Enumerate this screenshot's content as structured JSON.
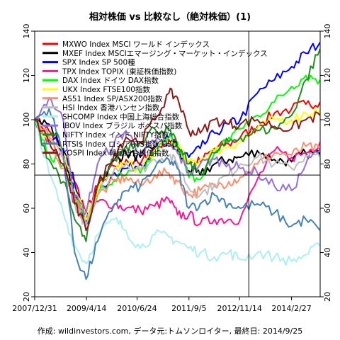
{
  "footer": "作成: wildinvestors.com, データ元:トムソンロイター, 最終日: 2014/9/25",
  "chart_data": {
    "type": "line",
    "title": "相対株価 vs 比較なし（絶対株価）(1)",
    "xlabel": "",
    "ylabel": "",
    "ylim": [
      20,
      140
    ],
    "yticks": [
      20,
      40,
      60,
      80,
      100,
      120,
      140
    ],
    "x_tick_labels": [
      "2007/12/31",
      "2009/4/14",
      "2010/6/24",
      "2011/9/5",
      "2012/11/14",
      "2014/2/27"
    ],
    "x_tick_positions": [
      0,
      0.1815,
      0.3585,
      0.5404,
      0.7176,
      0.8997
    ],
    "crosshair": {
      "x": 0.75,
      "y": 75
    },
    "grid": false,
    "legend_position": "top-left",
    "series": [
      {
        "name": "MXWO Index MSCI ワールド インデックス",
        "color": "#ff0000",
        "points": [
          [
            0,
            100
          ],
          [
            0.05,
            95
          ],
          [
            0.1,
            86
          ],
          [
            0.14,
            72
          ],
          [
            0.18,
            58
          ],
          [
            0.22,
            70
          ],
          [
            0.28,
            79
          ],
          [
            0.32,
            82
          ],
          [
            0.37,
            80
          ],
          [
            0.42,
            87
          ],
          [
            0.47,
            91
          ],
          [
            0.5,
            88
          ],
          [
            0.54,
            81
          ],
          [
            0.58,
            81
          ],
          [
            0.63,
            87
          ],
          [
            0.68,
            89
          ],
          [
            0.72,
            92
          ],
          [
            0.78,
            97
          ],
          [
            0.84,
            103
          ],
          [
            0.9,
            105
          ],
          [
            0.95,
            107
          ],
          [
            1.0,
            108
          ]
        ]
      },
      {
        "name": "MXEF Index MSCIエマージング・マーケット・インデックス",
        "color": "#000000",
        "points": [
          [
            0,
            100
          ],
          [
            0.05,
            98
          ],
          [
            0.1,
            86
          ],
          [
            0.14,
            66
          ],
          [
            0.18,
            53
          ],
          [
            0.22,
            68
          ],
          [
            0.28,
            82
          ],
          [
            0.32,
            85
          ],
          [
            0.37,
            83
          ],
          [
            0.42,
            88
          ],
          [
            0.47,
            90
          ],
          [
            0.5,
            86
          ],
          [
            0.54,
            77
          ],
          [
            0.58,
            75
          ],
          [
            0.63,
            80
          ],
          [
            0.68,
            82
          ],
          [
            0.72,
            83
          ],
          [
            0.78,
            86
          ],
          [
            0.84,
            82
          ],
          [
            0.9,
            81
          ],
          [
            0.95,
            85
          ],
          [
            1.0,
            84
          ]
        ]
      },
      {
        "name": "SPX Index SP 500種",
        "color": "#0000ff",
        "points": [
          [
            0,
            100
          ],
          [
            0.05,
            93
          ],
          [
            0.1,
            87
          ],
          [
            0.14,
            71
          ],
          [
            0.18,
            53
          ],
          [
            0.22,
            67
          ],
          [
            0.28,
            76
          ],
          [
            0.32,
            78
          ],
          [
            0.37,
            80
          ],
          [
            0.42,
            86
          ],
          [
            0.47,
            92
          ],
          [
            0.5,
            88
          ],
          [
            0.54,
            83
          ],
          [
            0.58,
            87
          ],
          [
            0.63,
            94
          ],
          [
            0.68,
            98
          ],
          [
            0.72,
            100
          ],
          [
            0.78,
            112
          ],
          [
            0.84,
            118
          ],
          [
            0.9,
            124
          ],
          [
            0.95,
            130
          ],
          [
            1.0,
            135
          ]
        ]
      },
      {
        "name": "TPX Index TOPIX (東証株価指数)",
        "color": "#ff1493",
        "points": [
          [
            0,
            100
          ],
          [
            0.05,
            91
          ],
          [
            0.1,
            82
          ],
          [
            0.14,
            62
          ],
          [
            0.18,
            55
          ],
          [
            0.22,
            63
          ],
          [
            0.28,
            62
          ],
          [
            0.32,
            60
          ],
          [
            0.37,
            59
          ],
          [
            0.42,
            61
          ],
          [
            0.47,
            64
          ],
          [
            0.5,
            57
          ],
          [
            0.54,
            57
          ],
          [
            0.58,
            53
          ],
          [
            0.63,
            55
          ],
          [
            0.68,
            55
          ],
          [
            0.72,
            55
          ],
          [
            0.78,
            73
          ],
          [
            0.84,
            86
          ],
          [
            0.9,
            83
          ],
          [
            0.95,
            85
          ],
          [
            1.0,
            90
          ]
        ]
      },
      {
        "name": "DAX Index ドイツ DAX指数",
        "color": "#00ff00",
        "points": [
          [
            0,
            100
          ],
          [
            0.05,
            85
          ],
          [
            0.1,
            80
          ],
          [
            0.14,
            65
          ],
          [
            0.18,
            55
          ],
          [
            0.22,
            66
          ],
          [
            0.28,
            73
          ],
          [
            0.32,
            75
          ],
          [
            0.37,
            76
          ],
          [
            0.42,
            85
          ],
          [
            0.47,
            92
          ],
          [
            0.5,
            90
          ],
          [
            0.54,
            74
          ],
          [
            0.58,
            73
          ],
          [
            0.63,
            85
          ],
          [
            0.68,
            92
          ],
          [
            0.72,
            96
          ],
          [
            0.78,
            102
          ],
          [
            0.84,
            108
          ],
          [
            0.9,
            115
          ],
          [
            0.95,
            120
          ],
          [
            1.0,
            118
          ]
        ]
      },
      {
        "name": "UKX Index FTSE100指数",
        "color": "#ffff00",
        "points": [
          [
            0,
            100
          ],
          [
            0.05,
            92
          ],
          [
            0.1,
            85
          ],
          [
            0.14,
            68
          ],
          [
            0.18,
            55
          ],
          [
            0.22,
            67
          ],
          [
            0.28,
            78
          ],
          [
            0.32,
            80
          ],
          [
            0.37,
            78
          ],
          [
            0.42,
            86
          ],
          [
            0.47,
            90
          ],
          [
            0.5,
            88
          ],
          [
            0.54,
            80
          ],
          [
            0.58,
            82
          ],
          [
            0.63,
            86
          ],
          [
            0.68,
            88
          ],
          [
            0.72,
            90
          ],
          [
            0.78,
            96
          ],
          [
            0.84,
            100
          ],
          [
            0.9,
            100
          ],
          [
            0.95,
            103
          ],
          [
            1.0,
            104
          ]
        ]
      },
      {
        "name": "AS51 Index SP/ASX200指数",
        "color": "#ff8c69",
        "points": [
          [
            0,
            100
          ],
          [
            0.05,
            92
          ],
          [
            0.1,
            78
          ],
          [
            0.14,
            65
          ],
          [
            0.18,
            52
          ],
          [
            0.22,
            66
          ],
          [
            0.28,
            72
          ],
          [
            0.32,
            74
          ],
          [
            0.37,
            70
          ],
          [
            0.42,
            75
          ],
          [
            0.47,
            76
          ],
          [
            0.5,
            72
          ],
          [
            0.54,
            66
          ],
          [
            0.58,
            68
          ],
          [
            0.63,
            70
          ],
          [
            0.68,
            72
          ],
          [
            0.72,
            74
          ],
          [
            0.78,
            80
          ],
          [
            0.84,
            85
          ],
          [
            0.9,
            84
          ],
          [
            0.95,
            88
          ],
          [
            1.0,
            86
          ]
        ]
      },
      {
        "name": "HSI Index 香港ハンセン指数",
        "color": "#bebebe",
        "points": [
          [
            0,
            100
          ],
          [
            0.05,
            93
          ],
          [
            0.1,
            82
          ],
          [
            0.14,
            62
          ],
          [
            0.18,
            52
          ],
          [
            0.22,
            68
          ],
          [
            0.28,
            78
          ],
          [
            0.32,
            80
          ],
          [
            0.37,
            77
          ],
          [
            0.42,
            82
          ],
          [
            0.47,
            84
          ],
          [
            0.5,
            80
          ],
          [
            0.54,
            69
          ],
          [
            0.58,
            66
          ],
          [
            0.63,
            71
          ],
          [
            0.68,
            75
          ],
          [
            0.72,
            80
          ],
          [
            0.78,
            83
          ],
          [
            0.84,
            80
          ],
          [
            0.9,
            78
          ],
          [
            0.95,
            84
          ],
          [
            1.0,
            83
          ]
        ]
      },
      {
        "name": "SHCOMP Index 中国上海総合指数",
        "color": "#afeeee",
        "points": [
          [
            0,
            100
          ],
          [
            0.05,
            76
          ],
          [
            0.1,
            58
          ],
          [
            0.14,
            43
          ],
          [
            0.18,
            35
          ],
          [
            0.22,
            48
          ],
          [
            0.28,
            55
          ],
          [
            0.32,
            50
          ],
          [
            0.37,
            42
          ],
          [
            0.42,
            48
          ],
          [
            0.47,
            47
          ],
          [
            0.5,
            45
          ],
          [
            0.54,
            42
          ],
          [
            0.58,
            40
          ],
          [
            0.63,
            38
          ],
          [
            0.68,
            40
          ],
          [
            0.72,
            37
          ],
          [
            0.78,
            40
          ],
          [
            0.84,
            38
          ],
          [
            0.9,
            36
          ],
          [
            0.95,
            39
          ],
          [
            1.0,
            43
          ]
        ]
      },
      {
        "name": "IBOV Index ブラジル ボベスパ指数",
        "color": "#9370db",
        "points": [
          [
            0,
            100
          ],
          [
            0.05,
            110
          ],
          [
            0.1,
            100
          ],
          [
            0.14,
            65
          ],
          [
            0.18,
            58
          ],
          [
            0.22,
            80
          ],
          [
            0.28,
            90
          ],
          [
            0.32,
            95
          ],
          [
            0.37,
            85
          ],
          [
            0.42,
            90
          ],
          [
            0.47,
            88
          ],
          [
            0.5,
            85
          ],
          [
            0.54,
            76
          ],
          [
            0.58,
            80
          ],
          [
            0.63,
            82
          ],
          [
            0.68,
            80
          ],
          [
            0.72,
            78
          ],
          [
            0.78,
            76
          ],
          [
            0.84,
            70
          ],
          [
            0.9,
            68
          ],
          [
            0.95,
            80
          ],
          [
            1.0,
            87
          ]
        ]
      },
      {
        "name": "NIFTY Index インド NIFTY指数",
        "color": "#228b22",
        "points": [
          [
            0,
            100
          ],
          [
            0.05,
            82
          ],
          [
            0.1,
            72
          ],
          [
            0.14,
            55
          ],
          [
            0.18,
            45
          ],
          [
            0.22,
            70
          ],
          [
            0.28,
            82
          ],
          [
            0.32,
            88
          ],
          [
            0.37,
            90
          ],
          [
            0.42,
            96
          ],
          [
            0.47,
            95
          ],
          [
            0.5,
            88
          ],
          [
            0.54,
            80
          ],
          [
            0.58,
            76
          ],
          [
            0.63,
            85
          ],
          [
            0.68,
            90
          ],
          [
            0.72,
            92
          ],
          [
            0.78,
            95
          ],
          [
            0.84,
            96
          ],
          [
            0.9,
            102
          ],
          [
            0.95,
            118
          ],
          [
            1.0,
            132
          ]
        ]
      },
      {
        "name": "RTSI$ Index ロシアRTS指数 USD",
        "color": "#4682b4",
        "points": [
          [
            0,
            100
          ],
          [
            0.05,
            105
          ],
          [
            0.1,
            85
          ],
          [
            0.14,
            40
          ],
          [
            0.18,
            28
          ],
          [
            0.22,
            45
          ],
          [
            0.28,
            62
          ],
          [
            0.32,
            68
          ],
          [
            0.37,
            70
          ],
          [
            0.42,
            78
          ],
          [
            0.47,
            82
          ],
          [
            0.5,
            78
          ],
          [
            0.54,
            60
          ],
          [
            0.58,
            62
          ],
          [
            0.63,
            66
          ],
          [
            0.68,
            62
          ],
          [
            0.72,
            60
          ],
          [
            0.78,
            62
          ],
          [
            0.84,
            58
          ],
          [
            0.9,
            52
          ],
          [
            0.95,
            55
          ],
          [
            1.0,
            50
          ]
        ]
      },
      {
        "name": "KOSPI Index 韓国総合株価指数",
        "color": "#8b1a1a",
        "points": [
          [
            0,
            100
          ],
          [
            0.05,
            90
          ],
          [
            0.1,
            80
          ],
          [
            0.14,
            62
          ],
          [
            0.18,
            50
          ],
          [
            0.22,
            70
          ],
          [
            0.28,
            85
          ],
          [
            0.32,
            92
          ],
          [
            0.37,
            90
          ],
          [
            0.42,
            100
          ],
          [
            0.47,
            112
          ],
          [
            0.5,
            110
          ],
          [
            0.54,
            95
          ],
          [
            0.58,
            94
          ],
          [
            0.63,
            100
          ],
          [
            0.68,
            98
          ],
          [
            0.72,
            98
          ],
          [
            0.78,
            100
          ],
          [
            0.84,
            97
          ],
          [
            0.9,
            96
          ],
          [
            0.95,
            100
          ],
          [
            1.0,
            102
          ]
        ]
      }
    ]
  }
}
